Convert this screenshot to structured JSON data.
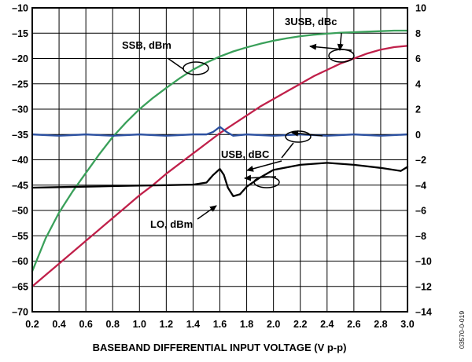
{
  "chart_data": {
    "type": "line",
    "title": "",
    "xlabel": "BASEBAND DIFFERENTIAL INPUT VOLTAGE (V p-p)",
    "ylabel_left": "",
    "ylabel_right": "",
    "xlim": [
      0.2,
      3.0
    ],
    "ylim_left": [
      -70,
      -10
    ],
    "ylim_right": [
      -14,
      10
    ],
    "x_ticks": [
      "0.2",
      "0.4",
      "0.6",
      "0.8",
      "1.0",
      "1.2",
      "1.4",
      "1.6",
      "1.8",
      "2.0",
      "2.2",
      "2.4",
      "2.6",
      "2.8",
      "3.0"
    ],
    "y_ticks_left": [
      "–10",
      "–15",
      "–20",
      "–25",
      "–30",
      "–35",
      "–40",
      "–45",
      "–50",
      "–55",
      "–60",
      "–65",
      "–70"
    ],
    "y_ticks_right": [
      "10",
      "8",
      "6",
      "4",
      "2",
      "0",
      "–2",
      "–4",
      "–6",
      "–8",
      "–10",
      "–12",
      "–14"
    ],
    "grid": true,
    "figure_id": "03570-0-019",
    "series": [
      {
        "name": "SSB, dBm",
        "axis": "left",
        "color": "#3aa05a",
        "x": [
          0.2,
          0.3,
          0.4,
          0.5,
          0.6,
          0.7,
          0.8,
          0.9,
          1.0,
          1.1,
          1.2,
          1.3,
          1.4,
          1.5,
          1.6,
          1.7,
          1.8,
          1.9,
          2.0,
          2.1,
          2.2,
          2.3,
          2.4,
          2.5,
          2.6,
          2.7,
          2.8,
          2.9,
          3.0
        ],
        "y": [
          -62.0,
          -55.5,
          -50.4,
          -46.3,
          -42.6,
          -38.9,
          -35.5,
          -32.6,
          -30.0,
          -27.8,
          -25.8,
          -23.9,
          -22.2,
          -20.8,
          -19.6,
          -18.6,
          -17.8,
          -17.1,
          -16.5,
          -16.0,
          -15.6,
          -15.3,
          -15.1,
          -14.9,
          -14.8,
          -14.7,
          -14.6,
          -14.5,
          -14.5
        ]
      },
      {
        "name": "3USB, dBc",
        "axis": "right",
        "color": "#c0204a",
        "x": [
          0.2,
          0.3,
          0.4,
          0.5,
          0.6,
          0.7,
          0.8,
          0.9,
          1.0,
          1.1,
          1.2,
          1.3,
          1.4,
          1.5,
          1.6,
          1.7,
          1.8,
          1.9,
          2.0,
          2.1,
          2.2,
          2.3,
          2.4,
          2.5,
          2.6,
          2.7,
          2.8,
          2.9,
          3.0
        ],
        "y": [
          -12.0,
          -11.1,
          -10.2,
          -9.3,
          -8.4,
          -7.5,
          -6.6,
          -5.7,
          -4.8,
          -4.0,
          -3.1,
          -2.3,
          -1.5,
          -0.7,
          0.1,
          0.8,
          1.5,
          2.2,
          2.8,
          3.4,
          4.0,
          4.6,
          5.1,
          5.6,
          6.0,
          6.4,
          6.7,
          6.9,
          7.0
        ]
      },
      {
        "name": "USB, dBC",
        "axis": "right",
        "color": "#2a4fa0",
        "x": [
          0.2,
          0.4,
          0.6,
          0.8,
          1.0,
          1.2,
          1.4,
          1.5,
          1.55,
          1.6,
          1.65,
          1.7,
          1.8,
          2.0,
          2.2,
          2.4,
          2.6,
          2.8,
          3.0
        ],
        "y": [
          0.0,
          -0.1,
          0.0,
          -0.1,
          0.0,
          -0.1,
          0.0,
          0.0,
          0.2,
          0.6,
          0.2,
          -0.1,
          0.0,
          -0.1,
          0.0,
          -0.1,
          0.0,
          -0.1,
          0.0
        ]
      },
      {
        "name": "LO, dBm",
        "axis": "left",
        "color": "#000000",
        "x": [
          0.2,
          0.4,
          0.6,
          0.8,
          1.0,
          1.2,
          1.4,
          1.5,
          1.55,
          1.6,
          1.63,
          1.66,
          1.7,
          1.75,
          1.8,
          1.9,
          2.0,
          2.2,
          2.4,
          2.6,
          2.8,
          2.95,
          3.0
        ],
        "y": [
          -45.5,
          -45.4,
          -45.3,
          -45.2,
          -45.1,
          -45.0,
          -44.9,
          -44.5,
          -43.0,
          -41.8,
          -43.0,
          -45.5,
          -47.2,
          -46.8,
          -45.3,
          -43.5,
          -42.0,
          -41.0,
          -40.6,
          -41.0,
          -41.6,
          -42.2,
          -41.4
        ]
      }
    ],
    "annotations": [
      {
        "text": "SSB, dBm"
      },
      {
        "text": "3USB, dBc"
      },
      {
        "text": "USB, dBC"
      },
      {
        "text": "LO, dBm"
      }
    ]
  }
}
